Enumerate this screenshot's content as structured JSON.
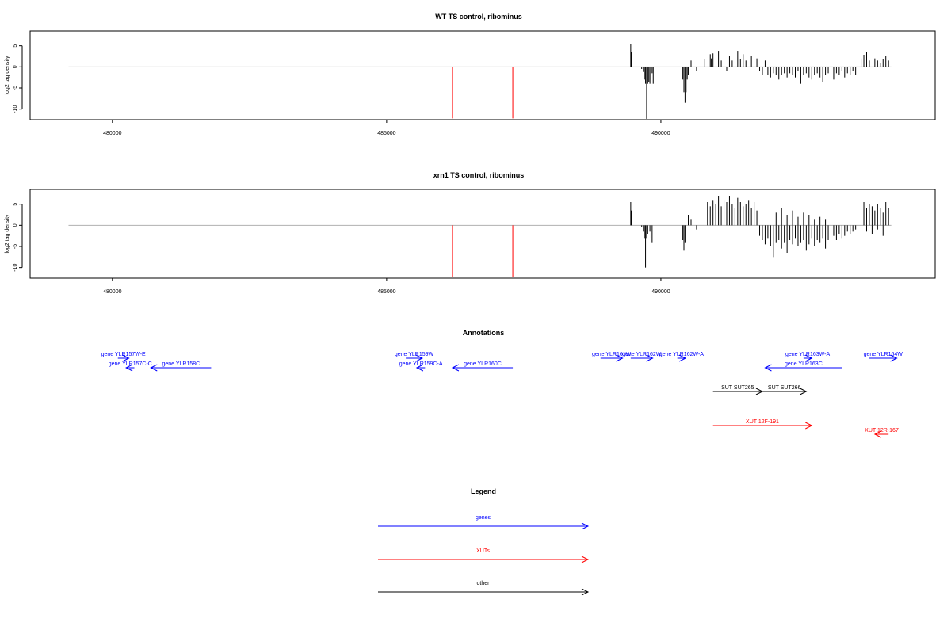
{
  "chart_data": [
    {
      "type": "bar",
      "title": "WT TS control, ribominus",
      "xlabel": "",
      "ylabel": "log2 tag density",
      "xlim": [
        478500,
        495000
      ],
      "ylim": [
        -12.5,
        8.5
      ],
      "xticks": [
        {
          "value": 480000,
          "label": "480000"
        },
        {
          "value": 485000,
          "label": "485000"
        },
        {
          "value": 490000,
          "label": "490000"
        }
      ],
      "yticks": [
        {
          "value": 5,
          "label": "5"
        },
        {
          "value": 0,
          "label": "0"
        },
        {
          "value": -5,
          "label": "-5"
        },
        {
          "value": -10,
          "label": "-10"
        }
      ],
      "baseline": {
        "from": 479200,
        "to": 494200,
        "color": "#b0b0b0"
      },
      "markers": [
        {
          "x": 486200,
          "y0": 0,
          "y1": -12.2,
          "color": "#ff0000"
        },
        {
          "x": 487300,
          "y0": 0,
          "y1": -12.2,
          "color": "#ff0000"
        }
      ],
      "bars": [
        {
          "x": 489450,
          "y": 5.5
        },
        {
          "x": 489460,
          "y": 3.5
        },
        {
          "x": 489650,
          "y": -0.5
        },
        {
          "x": 489680,
          "y": -1.2
        },
        {
          "x": 489700,
          "y": -3.0
        },
        {
          "x": 489720,
          "y": -4.0
        },
        {
          "x": 489740,
          "y": -12.3
        },
        {
          "x": 489760,
          "y": -4.0
        },
        {
          "x": 489780,
          "y": -3.5
        },
        {
          "x": 489800,
          "y": -4.0
        },
        {
          "x": 489820,
          "y": -3.0
        },
        {
          "x": 489840,
          "y": -1.5
        },
        {
          "x": 489860,
          "y": -4.0
        },
        {
          "x": 490400,
          "y": -3.0
        },
        {
          "x": 490420,
          "y": -6.0
        },
        {
          "x": 490440,
          "y": -8.5
        },
        {
          "x": 490460,
          "y": -6.0
        },
        {
          "x": 490480,
          "y": -3.0
        },
        {
          "x": 490500,
          "y": -2.0
        },
        {
          "x": 490550,
          "y": 1.5
        },
        {
          "x": 490650,
          "y": -1.0
        },
        {
          "x": 490800,
          "y": 1.8
        },
        {
          "x": 490900,
          "y": 3.0
        },
        {
          "x": 490920,
          "y": 2.0
        },
        {
          "x": 490950,
          "y": 3.2
        },
        {
          "x": 491050,
          "y": 3.8
        },
        {
          "x": 491100,
          "y": 1.5
        },
        {
          "x": 491200,
          "y": -1.0
        },
        {
          "x": 491250,
          "y": 2.5
        },
        {
          "x": 491300,
          "y": 1.5
        },
        {
          "x": 491400,
          "y": 3.8
        },
        {
          "x": 491450,
          "y": 1.8
        },
        {
          "x": 491500,
          "y": 3.0
        },
        {
          "x": 491550,
          "y": 1.5
        },
        {
          "x": 491650,
          "y": 2.5
        },
        {
          "x": 491750,
          "y": 2.0
        },
        {
          "x": 491800,
          "y": -1.0
        },
        {
          "x": 491850,
          "y": -2.0
        },
        {
          "x": 491900,
          "y": 1.5
        },
        {
          "x": 491950,
          "y": -2.0
        },
        {
          "x": 492000,
          "y": -2.5
        },
        {
          "x": 492050,
          "y": -1.5
        },
        {
          "x": 492100,
          "y": -2.0
        },
        {
          "x": 492150,
          "y": -3.0
        },
        {
          "x": 492200,
          "y": -2.0
        },
        {
          "x": 492250,
          "y": -1.5
        },
        {
          "x": 492300,
          "y": -2.5
        },
        {
          "x": 492350,
          "y": -1.5
        },
        {
          "x": 492400,
          "y": -2.0
        },
        {
          "x": 492450,
          "y": -2.5
        },
        {
          "x": 492500,
          "y": -1.0
        },
        {
          "x": 492550,
          "y": -4.0
        },
        {
          "x": 492600,
          "y": -2.0
        },
        {
          "x": 492650,
          "y": -1.5
        },
        {
          "x": 492700,
          "y": -2.5
        },
        {
          "x": 492750,
          "y": -3.0
        },
        {
          "x": 492800,
          "y": -2.0
        },
        {
          "x": 492850,
          "y": -1.5
        },
        {
          "x": 492900,
          "y": -2.5
        },
        {
          "x": 492950,
          "y": -3.5
        },
        {
          "x": 493000,
          "y": -2.0
        },
        {
          "x": 493050,
          "y": -1.5
        },
        {
          "x": 493100,
          "y": -2.0
        },
        {
          "x": 493150,
          "y": -3.0
        },
        {
          "x": 493200,
          "y": -1.5
        },
        {
          "x": 493250,
          "y": -2.0
        },
        {
          "x": 493300,
          "y": -1.0
        },
        {
          "x": 493350,
          "y": -2.5
        },
        {
          "x": 493400,
          "y": -1.5
        },
        {
          "x": 493450,
          "y": -2.0
        },
        {
          "x": 493500,
          "y": -1.0
        },
        {
          "x": 493550,
          "y": -2.0
        },
        {
          "x": 493650,
          "y": 2.0
        },
        {
          "x": 493700,
          "y": 2.8
        },
        {
          "x": 493750,
          "y": 3.5
        },
        {
          "x": 493800,
          "y": 1.5
        },
        {
          "x": 493900,
          "y": 2.0
        },
        {
          "x": 493950,
          "y": 1.5
        },
        {
          "x": 494000,
          "y": 1.0
        },
        {
          "x": 494050,
          "y": 1.8
        },
        {
          "x": 494100,
          "y": 2.5
        },
        {
          "x": 494150,
          "y": 1.5
        }
      ]
    },
    {
      "type": "bar",
      "title": "xrn1 TS control, ribominus",
      "xlabel": "",
      "ylabel": "log2 tag density",
      "xlim": [
        478500,
        495000
      ],
      "ylim": [
        -12.5,
        8.5
      ],
      "xticks": [
        {
          "value": 480000,
          "label": "480000"
        },
        {
          "value": 485000,
          "label": "485000"
        },
        {
          "value": 490000,
          "label": "490000"
        }
      ],
      "yticks": [
        {
          "value": 5,
          "label": "5"
        },
        {
          "value": 0,
          "label": "0"
        },
        {
          "value": -5,
          "label": "-5"
        },
        {
          "value": -10,
          "label": "-10"
        }
      ],
      "baseline": {
        "from": 479200,
        "to": 494200,
        "color": "#b0b0b0"
      },
      "markers": [
        {
          "x": 486200,
          "y0": 0,
          "y1": -12.2,
          "color": "#ff0000"
        },
        {
          "x": 487300,
          "y0": 0,
          "y1": -12.2,
          "color": "#ff0000"
        }
      ],
      "bars": [
        {
          "x": 489450,
          "y": 5.5
        },
        {
          "x": 489460,
          "y": 3.5
        },
        {
          "x": 489650,
          "y": -0.5
        },
        {
          "x": 489680,
          "y": -1.5
        },
        {
          "x": 489700,
          "y": -3.0
        },
        {
          "x": 489720,
          "y": -10.0
        },
        {
          "x": 489740,
          "y": -3.0
        },
        {
          "x": 489760,
          "y": -2.0
        },
        {
          "x": 489800,
          "y": -1.5
        },
        {
          "x": 489820,
          "y": -3.0
        },
        {
          "x": 489840,
          "y": -4.0
        },
        {
          "x": 490400,
          "y": -3.5
        },
        {
          "x": 490420,
          "y": -6.0
        },
        {
          "x": 490440,
          "y": -4.0
        },
        {
          "x": 490500,
          "y": 2.5
        },
        {
          "x": 490550,
          "y": 1.5
        },
        {
          "x": 490650,
          "y": -1.0
        },
        {
          "x": 490850,
          "y": 5.5
        },
        {
          "x": 490900,
          "y": 4.5
        },
        {
          "x": 490950,
          "y": 6.0
        },
        {
          "x": 491000,
          "y": 5.0
        },
        {
          "x": 491050,
          "y": 7.0
        },
        {
          "x": 491100,
          "y": 4.5
        },
        {
          "x": 491150,
          "y": 6.0
        },
        {
          "x": 491200,
          "y": 5.5
        },
        {
          "x": 491250,
          "y": 7.0
        },
        {
          "x": 491300,
          "y": 5.0
        },
        {
          "x": 491350,
          "y": 4.0
        },
        {
          "x": 491400,
          "y": 6.5
        },
        {
          "x": 491450,
          "y": 5.5
        },
        {
          "x": 491500,
          "y": 4.5
        },
        {
          "x": 491550,
          "y": 5.0
        },
        {
          "x": 491600,
          "y": 6.0
        },
        {
          "x": 491650,
          "y": 4.0
        },
        {
          "x": 491700,
          "y": 5.5
        },
        {
          "x": 491750,
          "y": 3.5
        },
        {
          "x": 491800,
          "y": -2.5
        },
        {
          "x": 491850,
          "y": -3.5
        },
        {
          "x": 491900,
          "y": -4.5
        },
        {
          "x": 491950,
          "y": -3.0
        },
        {
          "x": 492000,
          "y": -5.0
        },
        {
          "x": 492050,
          "y": -7.5
        },
        {
          "x": 492100,
          "y": -4.0
        },
        {
          "x": 492150,
          "y": -3.5
        },
        {
          "x": 492200,
          "y": -5.5
        },
        {
          "x": 492250,
          "y": -4.0
        },
        {
          "x": 492300,
          "y": -6.5
        },
        {
          "x": 492350,
          "y": -3.5
        },
        {
          "x": 492400,
          "y": -4.5
        },
        {
          "x": 492450,
          "y": -3.0
        },
        {
          "x": 492500,
          "y": -5.0
        },
        {
          "x": 492550,
          "y": -4.0
        },
        {
          "x": 492600,
          "y": -3.5
        },
        {
          "x": 492650,
          "y": -6.0
        },
        {
          "x": 492700,
          "y": -4.5
        },
        {
          "x": 492750,
          "y": -3.0
        },
        {
          "x": 492800,
          "y": -5.0
        },
        {
          "x": 492850,
          "y": -3.5
        },
        {
          "x": 492900,
          "y": -4.0
        },
        {
          "x": 492950,
          "y": -3.0
        },
        {
          "x": 493000,
          "y": -5.5
        },
        {
          "x": 493050,
          "y": -3.5
        },
        {
          "x": 493100,
          "y": -4.0
        },
        {
          "x": 493150,
          "y": -2.5
        },
        {
          "x": 493200,
          "y": -3.5
        },
        {
          "x": 493250,
          "y": -2.0
        },
        {
          "x": 493300,
          "y": -3.0
        },
        {
          "x": 493350,
          "y": -2.5
        },
        {
          "x": 493400,
          "y": -1.5
        },
        {
          "x": 493450,
          "y": -2.0
        },
        {
          "x": 493500,
          "y": -1.5
        },
        {
          "x": 493550,
          "y": -1.0
        },
        {
          "x": 492100,
          "y": 3.0
        },
        {
          "x": 492200,
          "y": 4.0
        },
        {
          "x": 492300,
          "y": 2.5
        },
        {
          "x": 492400,
          "y": 3.5
        },
        {
          "x": 492500,
          "y": 2.0
        },
        {
          "x": 492600,
          "y": 3.0
        },
        {
          "x": 492700,
          "y": 2.5
        },
        {
          "x": 492800,
          "y": 1.5
        },
        {
          "x": 492900,
          "y": 2.0
        },
        {
          "x": 493000,
          "y": 1.5
        },
        {
          "x": 493100,
          "y": 1.0
        },
        {
          "x": 493700,
          "y": 5.5
        },
        {
          "x": 493750,
          "y": 4.0
        },
        {
          "x": 493800,
          "y": 5.0
        },
        {
          "x": 493850,
          "y": 4.5
        },
        {
          "x": 493900,
          "y": 3.5
        },
        {
          "x": 493950,
          "y": 5.0
        },
        {
          "x": 494000,
          "y": 4.0
        },
        {
          "x": 494050,
          "y": 3.0
        },
        {
          "x": 494100,
          "y": 5.5
        },
        {
          "x": 494150,
          "y": 4.0
        },
        {
          "x": 493750,
          "y": -1.5
        },
        {
          "x": 493850,
          "y": -2.0
        },
        {
          "x": 493950,
          "y": -1.0
        },
        {
          "x": 494050,
          "y": -2.5
        }
      ]
    }
  ],
  "annotations": {
    "title": "Annotations",
    "xlim": [
      478500,
      495000
    ],
    "features": [
      {
        "label": "gene YLR157W-E",
        "start": 480100,
        "end": 480300,
        "strand": "+",
        "row": 0,
        "color": "#0000ff"
      },
      {
        "label": "gene YLR157C-C",
        "start": 480250,
        "end": 480400,
        "strand": "-",
        "row": 1,
        "color": "#0000ff"
      },
      {
        "label": "gene YLR158C",
        "start": 480700,
        "end": 481800,
        "strand": "-",
        "row": 1,
        "color": "#0000ff"
      },
      {
        "label": "gene YLR159W",
        "start": 485350,
        "end": 485650,
        "strand": "+",
        "row": 0,
        "color": "#0000ff"
      },
      {
        "label": "gene YLR159C-A",
        "start": 485550,
        "end": 485700,
        "strand": "-",
        "row": 1,
        "color": "#0000ff"
      },
      {
        "label": "gene YLR160C",
        "start": 486200,
        "end": 487300,
        "strand": "-",
        "row": 1,
        "color": "#0000ff"
      },
      {
        "label": "gene YLR161W",
        "start": 488900,
        "end": 489300,
        "strand": "+",
        "row": 0,
        "color": "#0000ff"
      },
      {
        "label": "gene YLR162W",
        "start": 489450,
        "end": 489850,
        "strand": "+",
        "row": 0,
        "color": "#0000ff"
      },
      {
        "label": "gene YLR162W-A",
        "start": 490300,
        "end": 490450,
        "strand": "+",
        "row": 0,
        "color": "#0000ff"
      },
      {
        "label": "gene YLR163W-A",
        "start": 492600,
        "end": 492750,
        "strand": "+",
        "row": 0,
        "color": "#0000ff"
      },
      {
        "label": "gene YLR163C",
        "start": 491900,
        "end": 493300,
        "strand": "-",
        "row": 1,
        "color": "#0000ff"
      },
      {
        "label": "gene YLR164W",
        "start": 493800,
        "end": 494300,
        "strand": "+",
        "row": 0,
        "color": "#0000ff"
      },
      {
        "label": "SUT SUT265",
        "start": 490950,
        "end": 491850,
        "strand": "+",
        "row": 2,
        "color": "#000000"
      },
      {
        "label": "SUT SUT266",
        "start": 491850,
        "end": 492650,
        "strand": "+",
        "row": 2,
        "color": "#000000"
      },
      {
        "label": "XUT 12F-191",
        "start": 490950,
        "end": 492750,
        "strand": "+",
        "row": 3,
        "color": "#ff0000"
      },
      {
        "label": "XUT 12R-167",
        "start": 493900,
        "end": 494150,
        "strand": "-",
        "row": 4,
        "color": "#ff0000"
      }
    ]
  },
  "legend": {
    "title": "Legend",
    "items": [
      {
        "label": "genes",
        "color": "#0000ff"
      },
      {
        "label": "XUTs",
        "color": "#ff0000"
      },
      {
        "label": "other",
        "color": "#000000"
      }
    ]
  }
}
